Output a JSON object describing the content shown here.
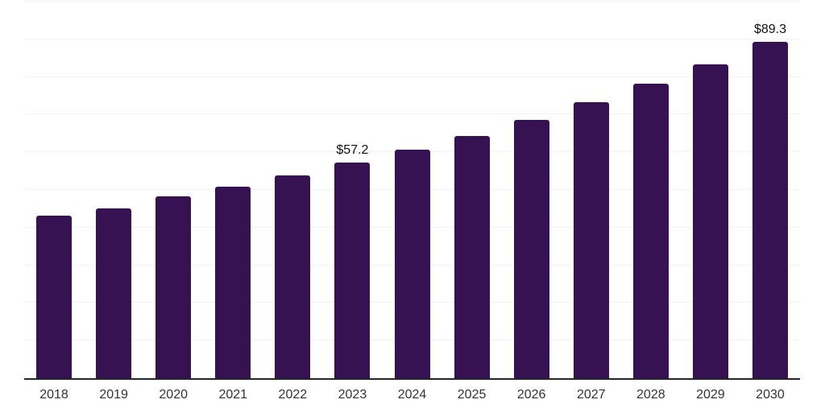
{
  "chart_data": {
    "type": "bar",
    "categories": [
      "2018",
      "2019",
      "2020",
      "2021",
      "2022",
      "2023",
      "2024",
      "2025",
      "2026",
      "2027",
      "2028",
      "2029",
      "2030"
    ],
    "values": [
      43.2,
      45.1,
      48.3,
      50.9,
      53.9,
      57.2,
      60.7,
      64.4,
      68.6,
      73.2,
      78.3,
      83.4,
      89.3
    ],
    "data_labels": [
      "",
      "",
      "",
      "",
      "",
      "$57.2",
      "",
      "",
      "",
      "",
      "",
      "",
      "$89.3"
    ],
    "title": "",
    "xlabel": "",
    "ylabel": "",
    "ylim": [
      0,
      100
    ],
    "grid_step": 10,
    "grid": "on",
    "legend": "none",
    "bar_color": "#361252",
    "axis_color": "#262626",
    "grid_color": "#f2f2f2",
    "tick_label_color": "#333333",
    "data_label_color": "#111111"
  }
}
